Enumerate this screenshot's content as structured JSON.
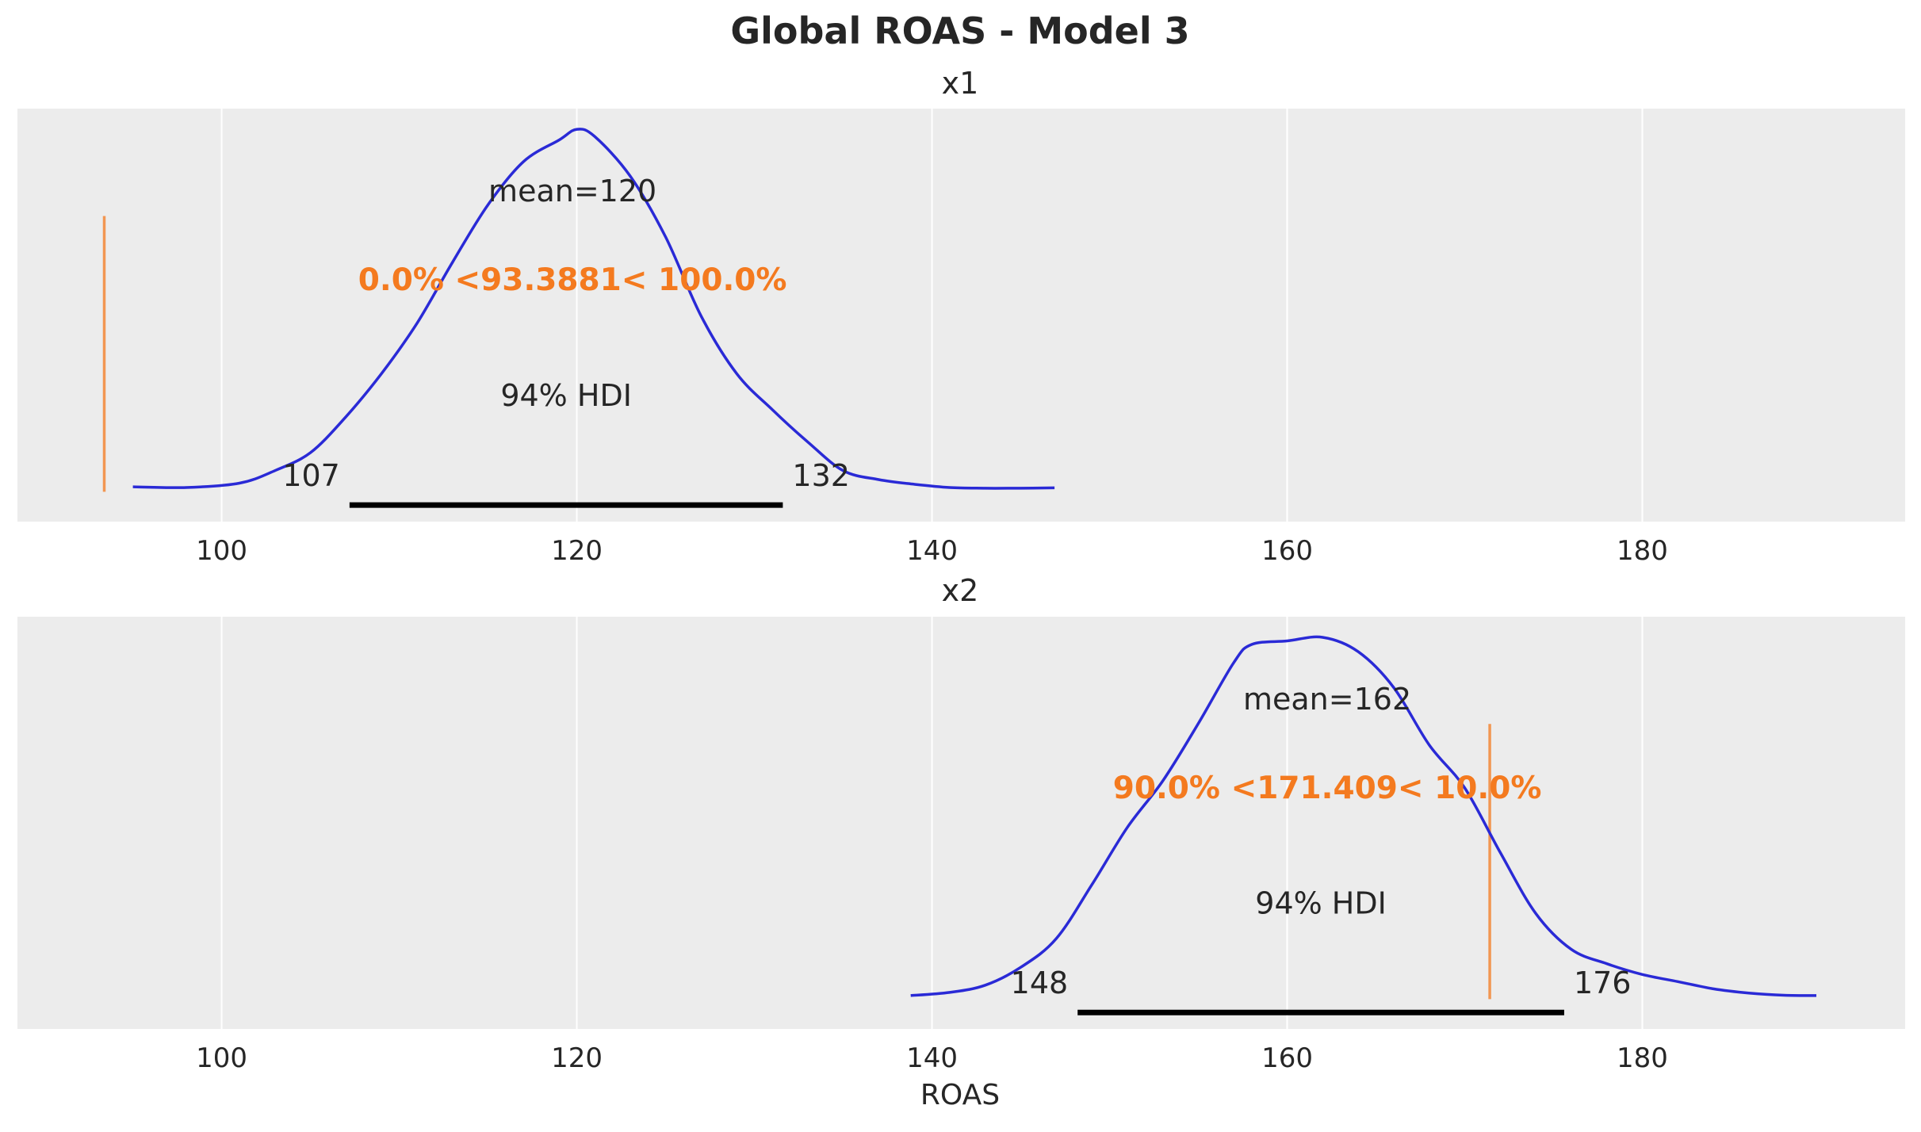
{
  "chart_data": {
    "type": "density",
    "title": "Global ROAS - Model 3",
    "xlabel": "ROAS",
    "xlim": [
      88.5,
      194.8
    ],
    "xticks": [
      100,
      120,
      140,
      160,
      180
    ],
    "grid": true,
    "colors": {
      "kde": "#2a2ad6",
      "reference": "#f47a1f",
      "hdi": "#000000",
      "background": "#ececec",
      "text": "#262626"
    },
    "panels": [
      {
        "title": "x1",
        "mean_label": "mean=120",
        "hdi_label": "94% HDI",
        "hdi": [
          107.2,
          131.6
        ],
        "hdi_low_label": "107",
        "hdi_high_label": "132",
        "reference_value": 93.3881,
        "reference_label": "0.0% <93.3881< 100.0%",
        "density": {
          "x": [
            95,
            98,
            101,
            103,
            105,
            107,
            109,
            111,
            113,
            115,
            117,
            119,
            120,
            121,
            123,
            125,
            127,
            129,
            131,
            133,
            135,
            137,
            139,
            141,
            143,
            145,
            146.9
          ],
          "y": [
            0.005,
            0.003,
            0.015,
            0.05,
            0.1,
            0.2,
            0.32,
            0.46,
            0.63,
            0.79,
            0.91,
            0.97,
            1.0,
            0.98,
            0.87,
            0.7,
            0.48,
            0.32,
            0.22,
            0.13,
            0.05,
            0.025,
            0.012,
            0.003,
            0.001,
            0.001,
            0.002
          ]
        }
      },
      {
        "title": "x2",
        "mean_label": "mean=162",
        "hdi_label": "94% HDI",
        "hdi": [
          148.2,
          175.6
        ],
        "hdi_low_label": "148",
        "hdi_high_label": "176",
        "reference_value": 171.409,
        "reference_label": "90.0% <171.409< 10.0%",
        "density": {
          "x": [
            138.8,
            141,
            143,
            145,
            147,
            149,
            151,
            153,
            155,
            157,
            158,
            160,
            162,
            164,
            166,
            168,
            170,
            172,
            174,
            176,
            178,
            180,
            182,
            184,
            186,
            188,
            189.8
          ],
          "y": [
            0.001,
            0.01,
            0.03,
            0.08,
            0.16,
            0.31,
            0.47,
            0.6,
            0.76,
            0.93,
            0.98,
            0.99,
            1.0,
            0.96,
            0.86,
            0.7,
            0.58,
            0.4,
            0.23,
            0.13,
            0.09,
            0.06,
            0.04,
            0.02,
            0.008,
            0.002,
            0.001
          ]
        }
      }
    ]
  }
}
